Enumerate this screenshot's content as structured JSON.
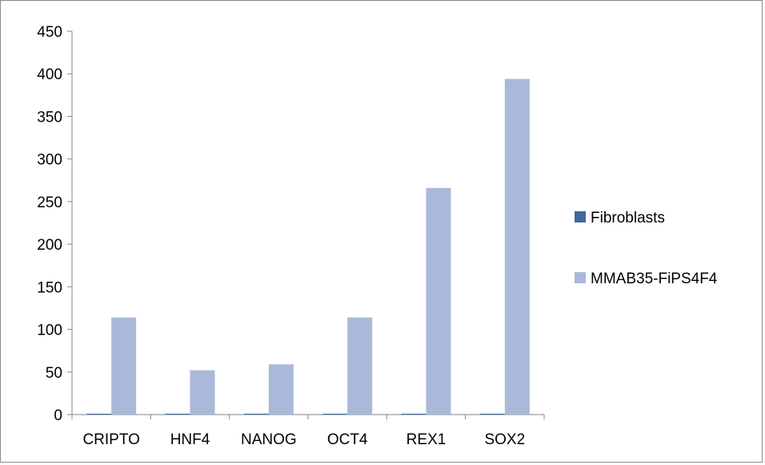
{
  "chart_data": {
    "type": "bar",
    "categories": [
      "CRIPTO",
      "HNF4",
      "NANOG",
      "OCT4",
      "REX1",
      "SOX2"
    ],
    "series": [
      {
        "name": "Fibroblasts",
        "color": "#3f6a9c",
        "values": [
          1,
          1,
          1,
          1,
          1,
          1
        ]
      },
      {
        "name": "MMAB35-FiPS4F4",
        "color": "#aab9d9",
        "values": [
          114,
          52,
          59,
          114,
          266,
          394
        ]
      }
    ],
    "ylim": [
      0,
      450
    ],
    "yticks": [
      0,
      50,
      100,
      150,
      200,
      250,
      300,
      350,
      400,
      450
    ],
    "title": "",
    "xlabel": "",
    "ylabel": "",
    "grid": false,
    "legend_position": "right"
  }
}
